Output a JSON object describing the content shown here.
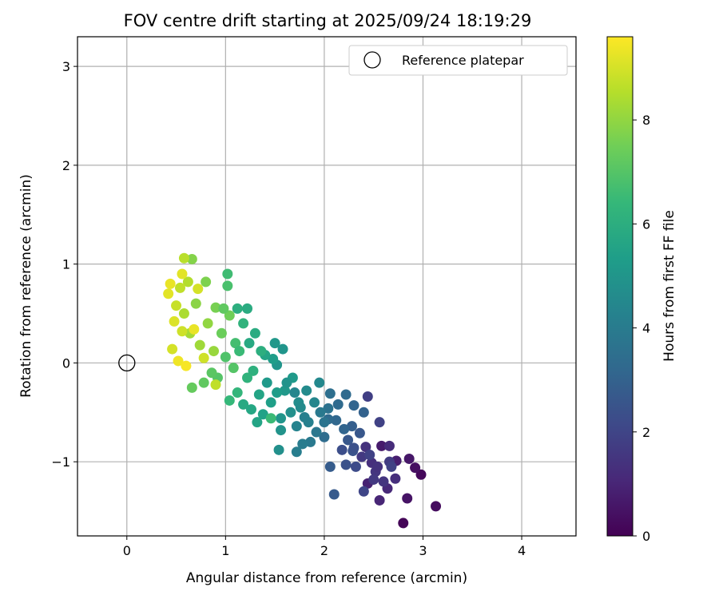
{
  "chart_data": {
    "type": "scatter",
    "title": "FOV centre drift starting at 2025/09/24 18:19:29",
    "xlabel": "Angular distance from reference (arcmin)",
    "ylabel": "Rotation from reference (arcmin)",
    "xlim": [
      -0.5,
      4.55
    ],
    "ylim": [
      -1.75,
      3.3
    ],
    "xticks": [
      0,
      1,
      2,
      3,
      4
    ],
    "xtick_labels": [
      "0",
      "1",
      "2",
      "3",
      "4"
    ],
    "yticks": [
      -1,
      0,
      1,
      2,
      3
    ],
    "ytick_labels": [
      "−1",
      "0",
      "1",
      "2",
      "3"
    ],
    "grid": true,
    "legend": {
      "position": "top-right",
      "entries": [
        "Reference platepar"
      ]
    },
    "colorbar": {
      "label": "Hours from first FF file",
      "range": [
        0,
        9.6
      ],
      "ticks": [
        0,
        2,
        4,
        6,
        8
      ],
      "tick_labels": [
        "0",
        "2",
        "4",
        "6",
        "8"
      ],
      "colormap": "viridis"
    },
    "reference_point": {
      "x": 0,
      "y": 0,
      "label": "Reference platepar"
    },
    "series": [
      {
        "name": "FOV centre drift",
        "points": [
          [
            2.8,
            -1.62,
            0.1
          ],
          [
            3.13,
            -1.45,
            0.3
          ],
          [
            2.84,
            -1.37,
            0.5
          ],
          [
            2.98,
            -1.13,
            0.2
          ],
          [
            2.92,
            -1.06,
            0.4
          ],
          [
            2.86,
            -0.97,
            0.6
          ],
          [
            2.73,
            -0.99,
            0.8
          ],
          [
            2.56,
            -1.39,
            1.0
          ],
          [
            2.64,
            -1.27,
            1.1
          ],
          [
            2.44,
            -1.22,
            0.9
          ],
          [
            2.58,
            -0.84,
            0.7
          ],
          [
            2.66,
            -0.84,
            1.2
          ],
          [
            2.48,
            -1.01,
            1.3
          ],
          [
            2.52,
            -1.1,
            1.5
          ],
          [
            2.42,
            -0.85,
            1.4
          ],
          [
            2.38,
            -0.95,
            1.6
          ],
          [
            2.44,
            -0.34,
            1.8
          ],
          [
            2.56,
            -0.6,
            1.9
          ],
          [
            2.66,
            -1.0,
            1.7
          ],
          [
            2.6,
            -1.2,
            1.5
          ],
          [
            2.72,
            -1.17,
            1.3
          ],
          [
            2.68,
            -1.05,
            1.9
          ],
          [
            2.5,
            -1.18,
            1.6
          ],
          [
            2.4,
            -1.3,
            2.0
          ],
          [
            2.32,
            -1.05,
            2.2
          ],
          [
            2.22,
            -1.03,
            2.4
          ],
          [
            2.18,
            -0.88,
            2.3
          ],
          [
            2.29,
            -0.89,
            2.5
          ],
          [
            2.36,
            -0.71,
            2.6
          ],
          [
            2.06,
            -1.05,
            2.8
          ],
          [
            2.1,
            -1.33,
            2.7
          ],
          [
            2.28,
            -0.64,
            2.9
          ],
          [
            2.4,
            -0.5,
            3.0
          ],
          [
            2.2,
            -0.67,
            3.1
          ],
          [
            2.12,
            -0.58,
            3.2
          ],
          [
            2.04,
            -0.57,
            3.3
          ],
          [
            2.0,
            -0.75,
            3.4
          ],
          [
            2.06,
            -0.31,
            3.5
          ],
          [
            2.22,
            -0.32,
            3.3
          ],
          [
            2.3,
            -0.43,
            3.1
          ],
          [
            2.04,
            -0.46,
            3.6
          ],
          [
            2.0,
            -0.6,
            3.7
          ],
          [
            1.92,
            -0.7,
            3.8
          ],
          [
            1.86,
            -0.8,
            3.9
          ],
          [
            1.78,
            -0.82,
            4.0
          ],
          [
            1.72,
            -0.9,
            4.1
          ],
          [
            1.8,
            -0.55,
            4.2
          ],
          [
            1.72,
            -0.64,
            4.3
          ],
          [
            1.9,
            -0.4,
            4.4
          ],
          [
            1.95,
            -0.2,
            4.5
          ],
          [
            1.82,
            -0.28,
            4.6
          ],
          [
            1.74,
            -0.4,
            4.7
          ],
          [
            1.66,
            -0.5,
            4.8
          ],
          [
            1.56,
            -0.68,
            4.9
          ],
          [
            1.54,
            -0.88,
            4.8
          ],
          [
            1.56,
            -0.56,
            5.0
          ],
          [
            1.6,
            -0.28,
            5.1
          ],
          [
            1.68,
            -0.15,
            5.2
          ],
          [
            1.52,
            -0.3,
            5.3
          ],
          [
            1.46,
            -0.4,
            5.4
          ],
          [
            1.38,
            -0.52,
            5.5
          ],
          [
            1.32,
            -0.6,
            5.6
          ],
          [
            1.26,
            -0.47,
            5.7
          ],
          [
            1.18,
            -0.42,
            5.8
          ],
          [
            1.42,
            -0.2,
            5.2
          ],
          [
            1.52,
            -0.02,
            5.0
          ],
          [
            1.48,
            0.04,
            5.3
          ],
          [
            1.4,
            0.08,
            5.6
          ],
          [
            1.5,
            0.2,
            5.1
          ],
          [
            1.58,
            0.14,
            5.0
          ],
          [
            1.3,
            0.3,
            5.9
          ],
          [
            1.36,
            0.12,
            6.0
          ],
          [
            1.28,
            -0.08,
            6.1
          ],
          [
            1.22,
            -0.15,
            6.2
          ],
          [
            1.12,
            -0.3,
            6.3
          ],
          [
            1.04,
            -0.38,
            6.4
          ],
          [
            1.12,
            0.55,
            6.0
          ],
          [
            1.22,
            0.55,
            5.9
          ],
          [
            1.18,
            0.4,
            6.2
          ],
          [
            1.02,
            0.9,
            6.6
          ],
          [
            1.02,
            0.78,
            6.8
          ],
          [
            1.46,
            -0.56,
            6.5
          ],
          [
            1.1,
            0.2,
            6.7
          ],
          [
            1.0,
            0.06,
            6.9
          ],
          [
            0.92,
            -0.15,
            7.0
          ],
          [
            0.86,
            -0.1,
            7.1
          ],
          [
            0.78,
            -0.2,
            7.2
          ],
          [
            0.66,
            -0.25,
            7.3
          ],
          [
            0.96,
            0.3,
            7.4
          ],
          [
            1.04,
            0.48,
            7.5
          ],
          [
            0.9,
            0.56,
            7.6
          ],
          [
            0.8,
            0.82,
            7.7
          ],
          [
            0.66,
            1.05,
            7.8
          ],
          [
            0.7,
            0.6,
            7.9
          ],
          [
            0.82,
            0.4,
            8.0
          ],
          [
            0.88,
            0.12,
            8.1
          ],
          [
            0.74,
            0.18,
            8.2
          ],
          [
            0.64,
            0.3,
            8.3
          ],
          [
            0.58,
            0.5,
            8.4
          ],
          [
            0.62,
            0.82,
            8.5
          ],
          [
            0.58,
            1.06,
            8.6
          ],
          [
            0.54,
            0.76,
            8.7
          ],
          [
            0.5,
            0.58,
            8.8
          ],
          [
            0.56,
            0.32,
            8.9
          ],
          [
            0.46,
            0.14,
            9.0
          ],
          [
            0.48,
            0.42,
            9.1
          ],
          [
            0.42,
            0.7,
            9.2
          ],
          [
            0.44,
            0.8,
            9.3
          ],
          [
            0.52,
            0.02,
            9.4
          ],
          [
            0.6,
            -0.03,
            9.5
          ],
          [
            0.68,
            0.34,
            9.3
          ],
          [
            0.56,
            0.9,
            9.2
          ],
          [
            0.72,
            0.75,
            9.0
          ],
          [
            0.78,
            0.05,
            8.9
          ],
          [
            0.9,
            -0.22,
            8.7
          ],
          [
            1.08,
            -0.05,
            7.0
          ],
          [
            0.98,
            0.55,
            7.2
          ],
          [
            1.14,
            0.12,
            6.5
          ],
          [
            1.24,
            0.2,
            5.8
          ],
          [
            1.34,
            -0.32,
            5.6
          ],
          [
            1.62,
            -0.2,
            4.9
          ],
          [
            1.7,
            -0.3,
            4.4
          ],
          [
            1.76,
            -0.45,
            4.6
          ],
          [
            1.84,
            -0.6,
            4.2
          ],
          [
            1.96,
            -0.5,
            3.9
          ],
          [
            2.14,
            -0.42,
            3.3
          ],
          [
            2.24,
            -0.78,
            2.6
          ],
          [
            2.3,
            -0.86,
            2.4
          ],
          [
            2.46,
            -0.93,
            1.9
          ],
          [
            2.54,
            -1.05,
            1.4
          ]
        ]
      }
    ]
  }
}
